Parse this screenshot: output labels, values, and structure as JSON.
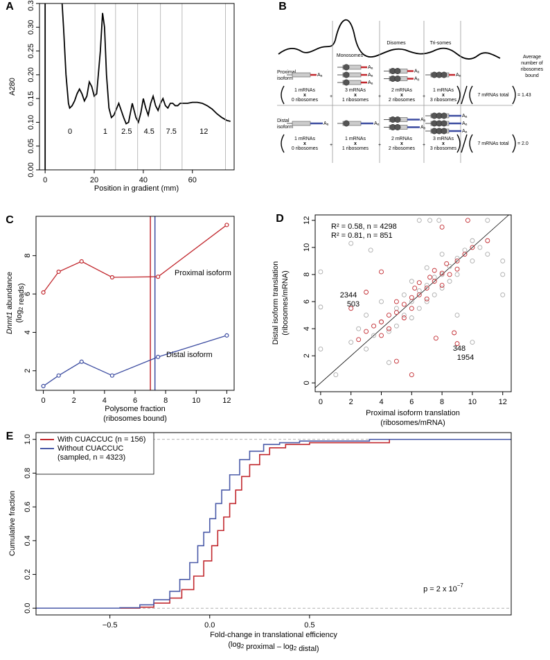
{
  "chart_data": [
    {
      "panel_label": "A",
      "type": "line",
      "color": "#000000",
      "ylabel": "A280",
      "xlabel": "Position in gradient (mm)",
      "xlim": [
        -2.3,
        77
      ],
      "xticks": [
        0,
        20,
        40,
        60
      ],
      "ylim": [
        0,
        0.35
      ],
      "yticks": [
        {
          "value": 0,
          "label": "0.00"
        },
        0.05,
        {
          "value": 0.1,
          "label": "0.10"
        },
        0.15,
        {
          "value": 0.2,
          "label": "0.20"
        },
        0.25,
        {
          "value": 0.3,
          "label": "0.30"
        },
        0.35
      ],
      "x": [
        0,
        0,
        6.8,
        7.5,
        8.5,
        9.5,
        10,
        11,
        12,
        13,
        14,
        15,
        16,
        17,
        18,
        19,
        20,
        21,
        22.5,
        23.4,
        24.2,
        25,
        26,
        27,
        28,
        30,
        32,
        33,
        34,
        35.5,
        37,
        38,
        39,
        40,
        41,
        42,
        43,
        44,
        45,
        46,
        47,
        48,
        49,
        50,
        51,
        52,
        53,
        54,
        55,
        56,
        58,
        60,
        62,
        64,
        66,
        68,
        70,
        72,
        74,
        75.5
      ],
      "values": [
        0,
        0.36,
        0.36,
        0.3,
        0.2,
        0.14,
        0.13,
        0.135,
        0.145,
        0.16,
        0.17,
        0.16,
        0.145,
        0.155,
        0.185,
        0.175,
        0.155,
        0.16,
        0.25,
        0.33,
        0.3,
        0.2,
        0.13,
        0.11,
        0.115,
        0.14,
        0.11,
        0.097,
        0.1,
        0.14,
        0.11,
        0.1,
        0.12,
        0.15,
        0.13,
        0.115,
        0.14,
        0.155,
        0.135,
        0.125,
        0.14,
        0.15,
        0.135,
        0.13,
        0.14,
        0.14,
        0.135,
        0.135,
        0.14,
        0.14,
        0.14,
        0.142,
        0.142,
        0.14,
        0.135,
        0.128,
        0.118,
        0.11,
        0.104,
        0.102
      ],
      "fraction_boundaries": [
        20.3,
        28.7,
        37.7,
        47,
        55.8,
        73.5
      ],
      "fraction_labels": [
        "0",
        "1",
        "2.5",
        "4.5",
        "7.5",
        "12"
      ]
    },
    {
      "panel_label": "C",
      "type": "line",
      "markers": true,
      "xlabel": [
        "Polysome fraction",
        "(ribosomes bound)"
      ],
      "ylabel": [
        [
          {
            "i": "Dnmt1"
          },
          " abundance"
        ],
        [
          "(log",
          {
            "sub": "2"
          },
          " reads)"
        ]
      ],
      "xlim": [
        -0.48,
        12.48
      ],
      "xticks": [
        0,
        2,
        4,
        6,
        8,
        10,
        12
      ],
      "ylim": [
        0.98,
        10.05
      ],
      "yticks": [
        2,
        4,
        6,
        8
      ],
      "x": [
        0,
        1,
        2.5,
        4.5,
        7.5,
        12
      ],
      "series": [
        {
          "name": "Proximal isoform",
          "color": "#c1272d",
          "values": [
            6.08,
            7.16,
            7.7,
            6.87,
            6.9,
            9.6
          ],
          "vline_x": 7.0
        },
        {
          "name": "Distal isoform",
          "color": "#3b4ba0",
          "values": [
            1.2,
            1.75,
            2.47,
            1.75,
            2.72,
            3.84
          ],
          "vline_x": 7.3
        }
      ]
    },
    {
      "panel_label": "D",
      "type": "scatter",
      "identity_line": true,
      "xlabel": [
        "Proximal isoform translation",
        "(ribosomes/mRNA)"
      ],
      "ylabel": [
        "Distal isoform translation",
        "(ribosomes/mRNA)"
      ],
      "xlim": [
        -0.36,
        12.56
      ],
      "xticks": [
        0,
        2,
        4,
        6,
        8,
        10,
        12
      ],
      "ylim": [
        -0.65,
        12.4
      ],
      "yticks": [
        0,
        2,
        4,
        6,
        8,
        10,
        12
      ],
      "series": [
        {
          "color": "#aaaaaa",
          "x": [
            1,
            2,
            2.5,
            3,
            3,
            3.5,
            4,
            4,
            4.5,
            5,
            5,
            5.5,
            5.5,
            6,
            6,
            6,
            6.5,
            6.5,
            7,
            7,
            7,
            7.5,
            7.5,
            8,
            8,
            8,
            8.5,
            8.5,
            9,
            9,
            9.5,
            10,
            10,
            10.5,
            11,
            12,
            12,
            12,
            6.5,
            7.2,
            7.8,
            0,
            0,
            0,
            2,
            3.3,
            9,
            10,
            4.5,
            11
          ],
          "values": [
            0.6,
            3,
            4,
            2.5,
            5,
            3.5,
            4.5,
            6,
            3.8,
            5.5,
            4.2,
            6.5,
            5,
            6,
            4.8,
            7.5,
            6.8,
            5.5,
            7.2,
            8.5,
            6,
            7.8,
            6.5,
            8,
            9.5,
            7,
            8.6,
            7.5,
            9.2,
            8,
            9.8,
            9,
            10.5,
            10,
            9.5,
            8,
            6.5,
            9,
            12,
            12,
            12,
            8.2,
            5.6,
            2.5,
            10.3,
            9.8,
            5,
            3,
            1.5,
            12
          ]
        },
        {
          "color": "#c1272d",
          "x": [
            2.5,
            3,
            3.5,
            4,
            4,
            4.5,
            4.5,
            5,
            5,
            5.5,
            5.5,
            6,
            6,
            6.2,
            6.5,
            6.5,
            7,
            7,
            7.2,
            7.5,
            7.5,
            8,
            8,
            8.3,
            8.5,
            9,
            9,
            9.5,
            9.7,
            10,
            3,
            4,
            8.8,
            9,
            7.6,
            6,
            5,
            11,
            2,
            8
          ],
          "values": [
            3.2,
            3.8,
            4.2,
            4.5,
            3.5,
            5,
            4,
            5.2,
            6,
            5.8,
            4.8,
            6.3,
            5.5,
            7,
            6.5,
            7.4,
            7,
            6.2,
            7.8,
            7.5,
            8.3,
            8.1,
            7.2,
            8.8,
            8,
            9,
            8.4,
            9.5,
            12,
            10,
            6.7,
            8.2,
            3.7,
            2.9,
            3.3,
            0.6,
            1.6,
            10.5,
            5.5,
            11.5
          ]
        }
      ],
      "annotations": [
        {
          "text": "R² = 0.58, n = 4298",
          "color": "#000000"
        },
        {
          "text": "R² = 0.81, n = 851",
          "color": "#c1272d"
        },
        {
          "text": "2344",
          "color": "#000000"
        },
        {
          "text": "503",
          "color": "#c1272d"
        },
        {
          "text": "348",
          "color": "#c1272d"
        },
        {
          "text": "1954",
          "color": "#000000"
        }
      ]
    },
    {
      "panel_label": "E",
      "type": "step",
      "legend": "top-left",
      "xlabel": [
        "Fold-change in translational efficiency",
        [
          "(log",
          {
            "sub": "2"
          },
          " proximal – log",
          {
            "sub": "2"
          },
          " distal)"
        ]
      ],
      "ylabel": "Cumulative fraction",
      "xlim": [
        -0.87,
        1.51
      ],
      "xticks": [
        {
          "value": -0.5,
          "label": "−0.5"
        },
        {
          "value": 0,
          "label": "0.0"
        },
        0.5
      ],
      "ylim": [
        -0.04,
        1.04
      ],
      "yticks": [
        {
          "value": 0,
          "label": "0.0"
        },
        0.2,
        0.4,
        0.6,
        0.8,
        {
          "value": 1,
          "label": "1.0"
        }
      ],
      "hlines": [
        0,
        1
      ],
      "annotation": [
        "p = 2 x 10",
        {
          "sup": "−7"
        }
      ],
      "series": [
        {
          "name": "With CUACCUC (n = 156)",
          "color": "#c1272d",
          "x": [
            -0.87,
            -0.35,
            -0.28,
            -0.2,
            -0.14,
            -0.08,
            -0.03,
            0.01,
            0.04,
            0.07,
            0.1,
            0.13,
            0.16,
            0.2,
            0.25,
            0.3,
            0.38,
            0.5,
            0.9,
            1.51
          ],
          "values": [
            0,
            0.006,
            0.03,
            0.06,
            0.11,
            0.19,
            0.28,
            0.37,
            0.46,
            0.54,
            0.62,
            0.7,
            0.78,
            0.85,
            0.91,
            0.95,
            0.97,
            0.98,
            1,
            1
          ]
        },
        {
          "name": "Without CUACCUC",
          "name_note": "(sampled, n = 4323)",
          "color": "#4a5aa8",
          "x": [
            -0.87,
            -0.45,
            -0.35,
            -0.28,
            -0.2,
            -0.15,
            -0.1,
            -0.06,
            -0.03,
            0,
            0.03,
            0.06,
            0.1,
            0.15,
            0.2,
            0.27,
            0.35,
            0.45,
            0.8,
            1.51
          ],
          "values": [
            0,
            0.003,
            0.02,
            0.05,
            0.1,
            0.17,
            0.27,
            0.37,
            0.45,
            0.53,
            0.62,
            0.7,
            0.79,
            0.88,
            0.93,
            0.97,
            0.98,
            0.99,
            1,
            1
          ]
        }
      ]
    }
  ],
  "diagram": {
    "panel_label": "B",
    "fractions": [
      "Monosomes",
      "Disomes",
      "Tri-somes"
    ],
    "header": [
      "Average",
      "number of",
      "ribosomes",
      "bound"
    ],
    "polyA": "A",
    "polyA_sub": "n",
    "plus": "+",
    "times": "x",
    "rows": [
      {
        "label": [
          "Proximal",
          "isoform"
        ],
        "color": "#c1272d",
        "terms": [
          {
            "mrnas": "1 mRNAs",
            "ribosomes": "0 ribosomes"
          },
          {
            "mrnas": "3 mRNAs",
            "ribosomes": "1 ribosomes"
          },
          {
            "mrnas": "2 mRNAs",
            "ribosomes": "2 ribosomes"
          },
          {
            "mrnas": "1 mRNAs",
            "ribosomes": "3 ribosomes"
          }
        ],
        "total": "7 mRNAs total",
        "result": "= 1.43"
      },
      {
        "label": [
          "Distal",
          "isoform"
        ],
        "color": "#3b4ba0",
        "terms": [
          {
            "mrnas": "1 mRNAs",
            "ribosomes": "0 ribosomes"
          },
          {
            "mrnas": "1 mRNAs",
            "ribosomes": "1 ribosomes"
          },
          {
            "mrnas": "2 mRNAs",
            "ribosomes": "2 ribosomes"
          },
          {
            "mrnas": "3 mRNAs",
            "ribosomes": "3 ribosomes"
          }
        ],
        "total": "7 mRNAs total",
        "result": "= 2.0"
      }
    ]
  }
}
